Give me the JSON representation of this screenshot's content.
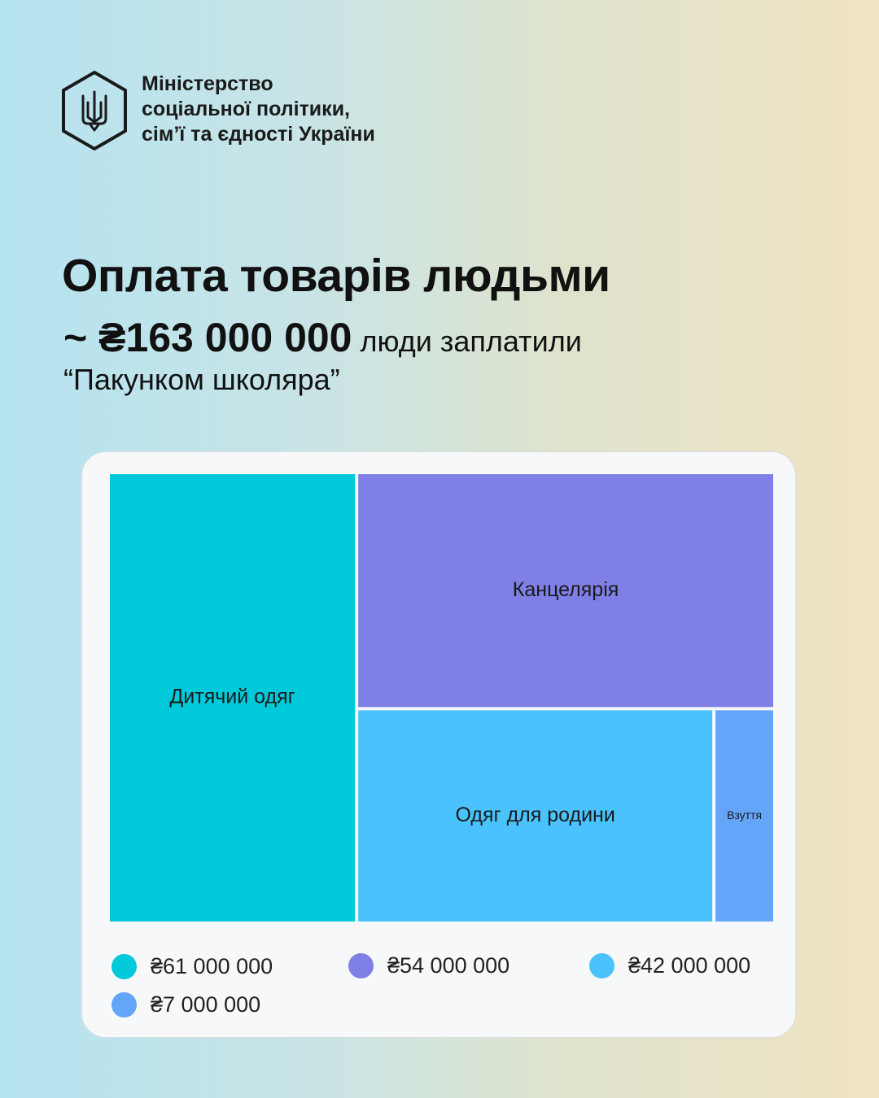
{
  "ministry": {
    "lines": [
      "Міністерство",
      "соціальної політики,",
      "сім’ї та єдності України"
    ],
    "logo_icon": "trident-hexagon-icon"
  },
  "title": "Оплата товарів людьми",
  "subtitle": {
    "amount": "~ ₴163 000 000",
    "text": "люди заплатили",
    "line2": "“Пакунком школяра”"
  },
  "colors": {
    "teal": "#00c9da",
    "purple": "#7f7fe6",
    "light_blue": "#49c2fd",
    "blue": "#63a5f9"
  },
  "chart_data": {
    "type": "treemap",
    "items": [
      {
        "name": "Дитячий одяг",
        "value": 61000000,
        "value_label": "₴61 000 000",
        "color": "#00c9da"
      },
      {
        "name": "Канцелярія",
        "value": 54000000,
        "value_label": "₴54 000 000",
        "color": "#7f7fe6"
      },
      {
        "name": "Одяг для родини",
        "value": 42000000,
        "value_label": "₴42 000 000",
        "color": "#49c2fd"
      },
      {
        "name": "Взуття",
        "value": 7000000,
        "value_label": "₴7 000 000",
        "color": "#63a5f9"
      }
    ],
    "legend_position": "bottom"
  }
}
